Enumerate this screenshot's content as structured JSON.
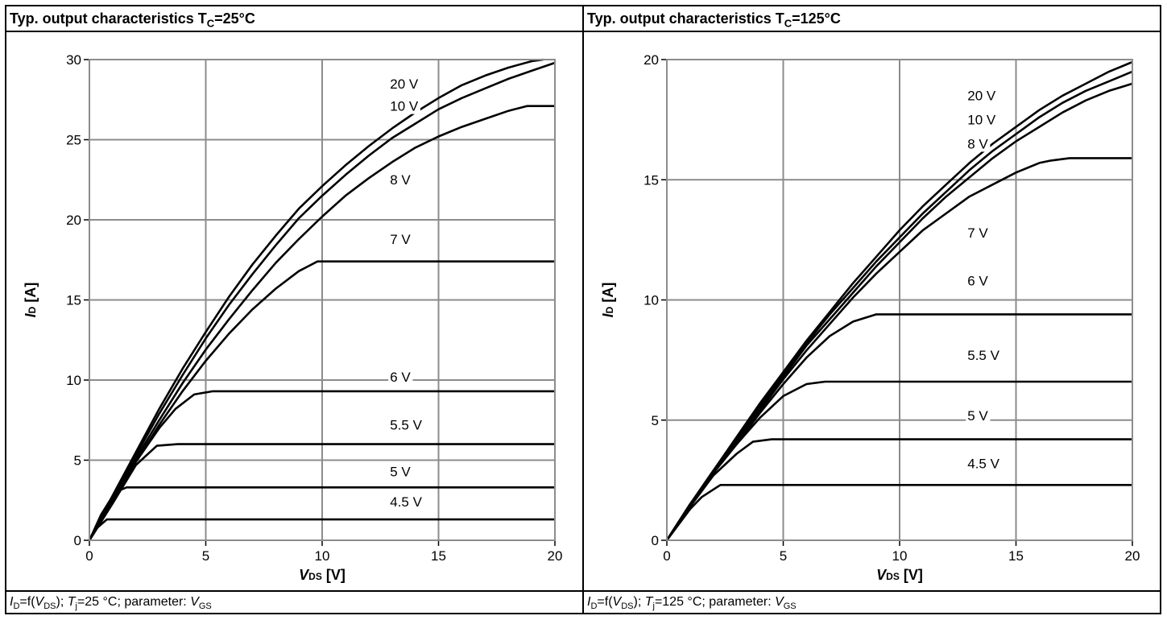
{
  "chart_data": [
    {
      "type": "line",
      "title_pre": "Typ. output characteristics T",
      "title_sub": "C",
      "title_post": "=25°C",
      "xlabel_main": "V",
      "xlabel_sub": "DS",
      "xlabel_unit": " [V]",
      "ylabel_main": "I",
      "ylabel_sub": "D",
      "ylabel_unit": " [A]",
      "xlim": [
        0,
        20
      ],
      "ylim": [
        0,
        30
      ],
      "xticks": [
        "0",
        "5",
        "10",
        "15",
        "20"
      ],
      "yticks": [
        "0",
        "5",
        "10",
        "15",
        "20",
        "25",
        "30"
      ],
      "grid": true,
      "footnote": {
        "p1": "I",
        "s1": "D",
        "p2": "=f(",
        "p3": "V",
        "s2": "DS",
        "p4": "); ",
        "p5": "T",
        "s3": "j",
        "p6": "=25 °C; parameter: ",
        "p7": "V",
        "s4": "GS"
      },
      "series": [
        {
          "name": "20 V",
          "label_at": [
            12.5,
            28.2
          ],
          "x": [
            0,
            1,
            2,
            3,
            4,
            5,
            6,
            7,
            8,
            9,
            10,
            11,
            12,
            13,
            14,
            15,
            16,
            17,
            18,
            19,
            19.5
          ],
          "y": [
            0,
            2.8,
            5.5,
            8.2,
            10.7,
            13.0,
            15.2,
            17.2,
            19.0,
            20.7,
            22.1,
            23.4,
            24.6,
            25.7,
            26.7,
            27.6,
            28.4,
            29.0,
            29.5,
            29.9,
            30.0
          ]
        },
        {
          "name": "10 V",
          "label_at": [
            12.5,
            26.8
          ],
          "x": [
            0,
            1,
            2,
            3,
            4,
            5,
            6,
            7,
            8,
            9,
            10,
            11,
            12,
            13,
            14,
            15,
            16,
            17,
            18,
            19,
            20
          ],
          "y": [
            0,
            2.7,
            5.3,
            7.9,
            10.3,
            12.6,
            14.7,
            16.6,
            18.4,
            20.1,
            21.5,
            22.8,
            24.0,
            25.1,
            26.0,
            26.9,
            27.6,
            28.2,
            28.8,
            29.3,
            29.8
          ]
        },
        {
          "name": "8 V",
          "label_at": [
            12.5,
            22.2
          ],
          "x": [
            0,
            1,
            2,
            3,
            4,
            5,
            6,
            7,
            8,
            9,
            10,
            11,
            12,
            13,
            14,
            15,
            16,
            17,
            18,
            18.8,
            20
          ],
          "y": [
            0,
            2.6,
            5.1,
            7.5,
            9.8,
            11.9,
            13.8,
            15.6,
            17.3,
            18.8,
            20.2,
            21.5,
            22.6,
            23.6,
            24.5,
            25.2,
            25.8,
            26.3,
            26.8,
            27.1,
            27.1
          ]
        },
        {
          "name": "7 V",
          "label_at": [
            12.5,
            18.5
          ],
          "x": [
            0,
            1,
            2,
            3,
            4,
            5,
            6,
            7,
            8,
            9,
            9.8,
            20
          ],
          "y": [
            0,
            2.5,
            4.9,
            7.2,
            9.3,
            11.2,
            12.9,
            14.4,
            15.7,
            16.8,
            17.4,
            17.4
          ]
        },
        {
          "name": "6 V",
          "label_at": [
            12.5,
            9.9
          ],
          "x": [
            0,
            1,
            2,
            3,
            3.7,
            4.5,
            5.3,
            20
          ],
          "y": [
            0,
            2.5,
            4.9,
            7.0,
            8.2,
            9.1,
            9.3,
            9.3
          ]
        },
        {
          "name": "5.5 V",
          "label_at": [
            12.5,
            6.9
          ],
          "x": [
            0,
            1,
            2,
            2.9,
            3.8,
            20
          ],
          "y": [
            0,
            2.3,
            4.7,
            5.9,
            6.0,
            6.0
          ]
        },
        {
          "name": "5 V",
          "label_at": [
            12.5,
            4.0
          ],
          "x": [
            0,
            0.5,
            1.1,
            1.6,
            2.2,
            20
          ],
          "y": [
            0,
            1.6,
            3.0,
            3.3,
            3.3,
            3.3
          ]
        },
        {
          "name": "4.5 V",
          "label_at": [
            12.5,
            2.1
          ],
          "x": [
            0,
            0.35,
            0.75,
            20
          ],
          "y": [
            0,
            0.8,
            1.3,
            1.3
          ]
        }
      ]
    },
    {
      "type": "line",
      "title_pre": "Typ. output characteristics T",
      "title_sub": "C",
      "title_post": "=125°C",
      "xlabel_main": "V",
      "xlabel_sub": "DS",
      "xlabel_unit": " [V]",
      "ylabel_main": "I",
      "ylabel_sub": "D",
      "ylabel_unit": " [A]",
      "xlim": [
        0,
        20
      ],
      "ylim": [
        0,
        20
      ],
      "xticks": [
        "0",
        "5",
        "10",
        "15",
        "20"
      ],
      "yticks": [
        "0",
        "5",
        "10",
        "15",
        "20"
      ],
      "grid": true,
      "footnote": {
        "p1": "I",
        "s1": "D",
        "p2": "=f(",
        "p3": "V",
        "s2": "DS",
        "p4": "); ",
        "p5": "T",
        "s3": "j",
        "p6": "=125 °C; parameter: ",
        "p7": "V",
        "s4": "GS"
      },
      "series": [
        {
          "name": "20 V",
          "label_at": [
            12.5,
            18.3
          ],
          "x": [
            0,
            1,
            2,
            3,
            4,
            5,
            6,
            7,
            8,
            9,
            10,
            11,
            12,
            13,
            14,
            15,
            16,
            17,
            18,
            19,
            20
          ],
          "y": [
            0,
            1.5,
            2.9,
            4.3,
            5.7,
            7.0,
            8.3,
            9.5,
            10.7,
            11.8,
            12.9,
            13.9,
            14.8,
            15.7,
            16.5,
            17.2,
            17.9,
            18.5,
            19.0,
            19.5,
            19.9
          ]
        },
        {
          "name": "10 V",
          "label_at": [
            12.5,
            17.3
          ],
          "x": [
            0,
            1,
            2,
            3,
            4,
            5,
            6,
            7,
            8,
            9,
            10,
            11,
            12,
            13,
            14,
            15,
            16,
            17,
            18,
            19,
            20
          ],
          "y": [
            0,
            1.5,
            2.9,
            4.2,
            5.6,
            6.9,
            8.2,
            9.4,
            10.5,
            11.6,
            12.6,
            13.6,
            14.5,
            15.4,
            16.2,
            16.9,
            17.6,
            18.2,
            18.7,
            19.1,
            19.5
          ]
        },
        {
          "name": "8 V",
          "label_at": [
            12.5,
            16.3
          ],
          "x": [
            0,
            1,
            2,
            3,
            4,
            5,
            6,
            7,
            8,
            9,
            10,
            11,
            12,
            13,
            14,
            15,
            16,
            17,
            18,
            19,
            20
          ],
          "y": [
            0,
            1.5,
            2.8,
            4.2,
            5.5,
            6.8,
            8.1,
            9.2,
            10.3,
            11.4,
            12.4,
            13.4,
            14.3,
            15.1,
            15.9,
            16.6,
            17.2,
            17.8,
            18.3,
            18.7,
            19.0
          ]
        },
        {
          "name": "7 V",
          "label_at": [
            12.5,
            12.6
          ],
          "x": [
            0,
            1,
            2,
            3,
            4,
            5,
            6,
            7,
            8,
            9,
            10,
            11,
            12,
            13,
            14,
            15,
            16,
            16.5,
            17.3,
            20
          ],
          "y": [
            0,
            1.5,
            2.8,
            4.1,
            5.4,
            6.7,
            7.9,
            9.0,
            10.1,
            11.1,
            12.0,
            12.9,
            13.6,
            14.3,
            14.8,
            15.3,
            15.7,
            15.8,
            15.9,
            15.9
          ]
        },
        {
          "name": "6 V",
          "label_at": [
            12.5,
            10.6
          ],
          "x": [
            0,
            1,
            2,
            3,
            4,
            5,
            6,
            7,
            8,
            9,
            20
          ],
          "y": [
            0,
            1.5,
            2.8,
            4.0,
            5.3,
            6.5,
            7.6,
            8.5,
            9.1,
            9.4,
            9.4
          ]
        },
        {
          "name": "5.5 V",
          "label_at": [
            12.5,
            7.5
          ],
          "x": [
            0,
            1,
            2,
            3,
            4,
            5,
            6,
            6.8,
            20
          ],
          "y": [
            0,
            1.5,
            2.8,
            4.0,
            5.1,
            6.0,
            6.5,
            6.6,
            6.6
          ]
        },
        {
          "name": "5 V",
          "label_at": [
            12.5,
            5.0
          ],
          "x": [
            0,
            1,
            2,
            3,
            3.7,
            4.5,
            20
          ],
          "y": [
            0,
            1.4,
            2.7,
            3.6,
            4.1,
            4.2,
            4.2
          ]
        },
        {
          "name": "4.5 V",
          "label_at": [
            12.5,
            3.0
          ],
          "x": [
            0,
            1,
            1.5,
            2.3,
            20
          ],
          "y": [
            0,
            1.3,
            1.8,
            2.3,
            2.3
          ]
        }
      ]
    }
  ]
}
